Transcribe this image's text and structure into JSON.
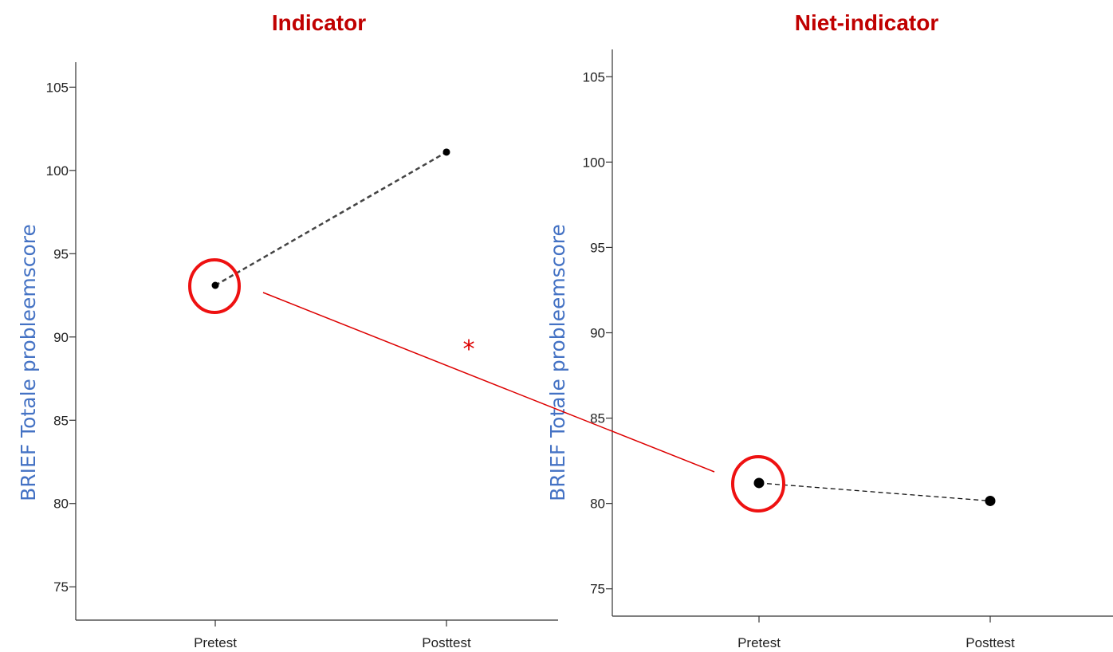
{
  "colors": {
    "title": "#c00000",
    "ylabel": "#4472c4",
    "series": "#222222",
    "highlight": "#ee1111"
  },
  "chart_data": [
    {
      "type": "line",
      "title": "Indicator",
      "ylabel": "BRIEF Totale probleemscore",
      "xlabel": "",
      "categories": [
        "Pretest",
        "Posttest"
      ],
      "values": [
        93.1,
        101.1
      ],
      "ylim": [
        73,
        106.5
      ],
      "yticks": [
        75,
        80,
        85,
        90,
        95,
        100,
        105
      ],
      "line_style": "dashed",
      "highlighted_point": "Pretest",
      "grid": false
    },
    {
      "type": "line",
      "title": "Niet-indicator",
      "ylabel": "BRIEF Totale probleemscore",
      "xlabel": "",
      "categories": [
        "Pretest",
        "Posttest"
      ],
      "values": [
        81.2,
        80.15
      ],
      "ylim": [
        73.4,
        106.6
      ],
      "yticks": [
        75,
        80,
        85,
        90,
        95,
        100,
        105
      ],
      "line_style": "dashed",
      "highlighted_point": "Pretest",
      "grid": false
    }
  ],
  "annotation": {
    "significance_marker": "*",
    "connects": "Indicator Pretest to Niet-indicator Pretest"
  }
}
